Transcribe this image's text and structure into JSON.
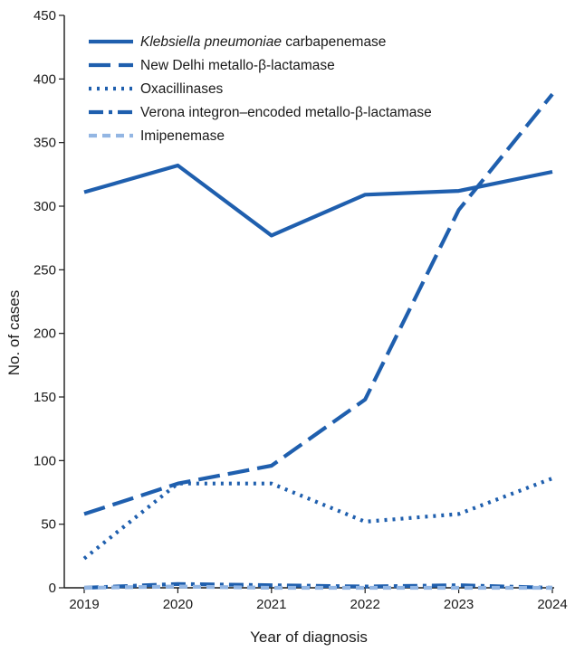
{
  "chart_data": {
    "type": "line",
    "xlabel": "Year of diagnosis",
    "ylabel": "No. of cases",
    "x": [
      "2019",
      "2020",
      "2021",
      "2022",
      "2023",
      "2024"
    ],
    "yticks": [
      "0",
      "50",
      "100",
      "150",
      "200",
      "250",
      "300",
      "350",
      "400",
      "450"
    ],
    "ylim": [
      0,
      450
    ],
    "grid": false,
    "legend": "top-left",
    "series": [
      {
        "name_italic": "Klebsiella pneumoniae",
        "name_rest": " carbapenemase",
        "style": "solid",
        "color": "#1f5fae",
        "values": [
          311,
          332,
          277,
          309,
          312,
          327
        ]
      },
      {
        "name": "New Delhi metallo-β-lactamase",
        "style": "dashed",
        "color": "#1f5fae",
        "values": [
          58,
          82,
          96,
          148,
          297,
          388
        ]
      },
      {
        "name": "Oxacillinases",
        "style": "dotted",
        "color": "#1f5fae",
        "values": [
          23,
          82,
          82,
          52,
          58,
          86
        ]
      },
      {
        "name": "Verona integron–encoded metallo-β-lactamase",
        "style": "dashdot",
        "color": "#1f5fae",
        "values": [
          0,
          3,
          2,
          1,
          2,
          0
        ]
      },
      {
        "name": "Imipenemase",
        "style": "dashed-light",
        "color": "#93b6e3",
        "values": [
          0,
          1,
          0,
          0,
          0,
          0
        ]
      }
    ]
  }
}
